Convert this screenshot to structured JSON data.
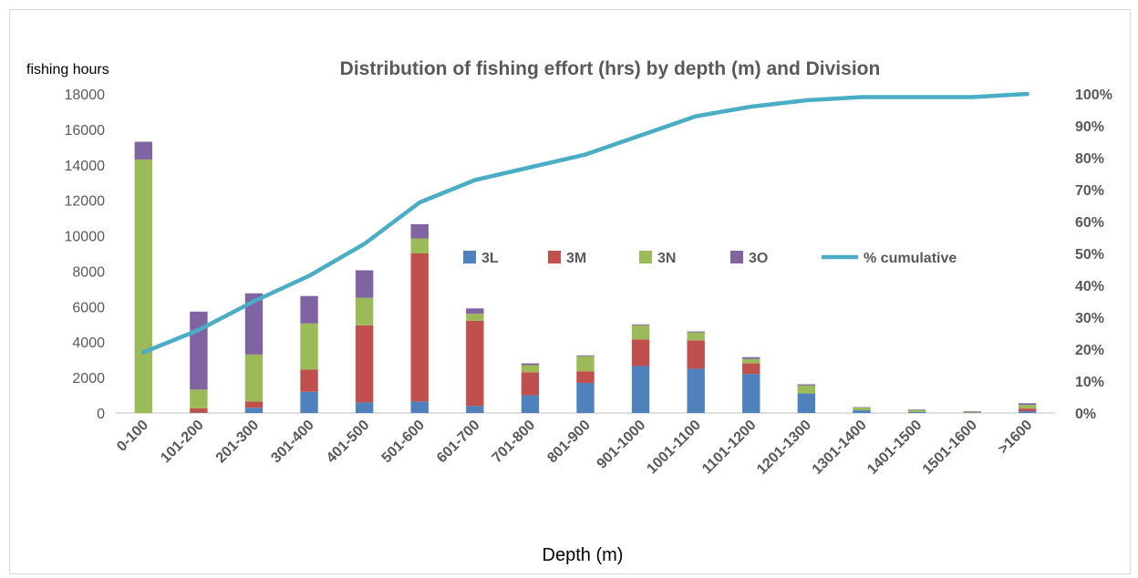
{
  "chart_data": {
    "type": "bar",
    "subtype": "stacked-bar-with-line",
    "title": "Distribution of fishing effort (hrs) by depth (m) and Division",
    "xlabel": "Depth (m)",
    "ylabel": "fishing hours",
    "ylim": [
      0,
      18000
    ],
    "y_ticks": [
      "0",
      "2000",
      "4000",
      "6000",
      "8000",
      "10000",
      "12000",
      "14000",
      "16000",
      "18000"
    ],
    "y2lim": [
      0,
      100
    ],
    "y2_ticks": [
      "0%",
      "10%",
      "20%",
      "30%",
      "40%",
      "50%",
      "60%",
      "70%",
      "80%",
      "90%",
      "100%"
    ],
    "categories": [
      "0-100",
      "101-200",
      "201-300",
      "301-400",
      "401-500",
      "501-600",
      "601-700",
      "701-800",
      "801-900",
      "901-1000",
      "1001-1100",
      "1101-1200",
      "1201-1300",
      "1301-1400",
      "1401-1500",
      "1501-1600",
      ">1600"
    ],
    "series": [
      {
        "name": "3L",
        "color": "#4f81bd",
        "values": [
          0,
          20,
          300,
          1200,
          600,
          650,
          400,
          1000,
          1700,
          2650,
          2500,
          2200,
          1100,
          150,
          50,
          20,
          100
        ]
      },
      {
        "name": "3M",
        "color": "#c0504d",
        "values": [
          0,
          250,
          350,
          1250,
          4350,
          8350,
          4800,
          1300,
          650,
          1500,
          1600,
          600,
          0,
          0,
          0,
          0,
          150
        ]
      },
      {
        "name": "3N",
        "color": "#9bbb59",
        "values": [
          14300,
          1050,
          2650,
          2600,
          1550,
          850,
          400,
          400,
          850,
          800,
          450,
          250,
          450,
          150,
          120,
          50,
          200
        ]
      },
      {
        "name": "3O",
        "color": "#8064a2",
        "values": [
          1000,
          4400,
          3450,
          1550,
          1550,
          800,
          300,
          100,
          50,
          50,
          50,
          100,
          70,
          30,
          30,
          30,
          100
        ]
      }
    ],
    "line": {
      "name": "% cumulative",
      "color": "#4bacc6",
      "axis": "secondary",
      "values": [
        19,
        26,
        35,
        43,
        53,
        66,
        73,
        77,
        81,
        87,
        93,
        96,
        98,
        99,
        99,
        99,
        100
      ]
    },
    "legend_position": "inside-middle",
    "grid": false
  }
}
